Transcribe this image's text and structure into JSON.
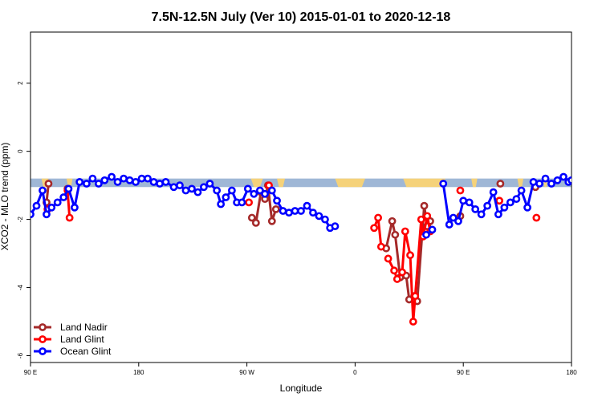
{
  "chart_data": {
    "type": "line",
    "title": "7.5N-12.5N July (Ver 10)   2015-01-01 to 2020-12-18",
    "xlabel": "Longitude",
    "ylabel": "XCO2 - MLO trend (ppm)",
    "xlim": [
      -90,
      180
    ],
    "ylim": [
      -6.2,
      3.5
    ],
    "xticks": [
      {
        "value": -90,
        "label": "90 E"
      },
      {
        "value": -36,
        "label": "180"
      },
      {
        "value": 18,
        "label": "90 W"
      },
      {
        "value": 72,
        "label": "0"
      },
      {
        "value": 126,
        "label": "90 E"
      },
      {
        "value": 180,
        "label": "180"
      }
    ],
    "yticks": [
      {
        "value": 2,
        "label": "2"
      },
      {
        "value": 0,
        "label": "0"
      },
      {
        "value": -2,
        "label": "-2"
      },
      {
        "value": -4,
        "label": "-4"
      },
      {
        "value": -6,
        "label": "-6"
      }
    ],
    "background_band": {
      "ymin": -1.05,
      "ymax": -0.8,
      "color": "#9fb7d6"
    },
    "land_regions": [
      {
        "x": [
          -84.5,
          -81
        ],
        "ymin": -1.05,
        "ymax": -0.8
      },
      {
        "x": [
          -72,
          -69
        ],
        "ymin": -1.05,
        "ymax": -0.8
      },
      {
        "x": [
          20,
          26
        ],
        "ymin": -1.05,
        "ymax": -0.8
      },
      {
        "x": [
          33,
          37
        ],
        "ymin": -1.05,
        "ymax": -0.8
      },
      {
        "x": [
          62,
          77
        ],
        "ymin": -1.05,
        "ymax": -0.8
      },
      {
        "x": [
          96,
          117
        ],
        "ymin": -1.05,
        "ymax": -0.8
      },
      {
        "x": [
          130,
          133
        ],
        "ymin": -1.05,
        "ymax": -0.8
      },
      {
        "x": [
          153,
          156
        ],
        "ymin": -1.05,
        "ymax": -0.8
      },
      {
        "x": [
          166,
          168
        ],
        "ymin": -1.05,
        "ymax": -0.8
      }
    ],
    "legend": {
      "position": "bottom-left",
      "entries": [
        "Land Nadir",
        "Land Glint",
        "Ocean Glint"
      ]
    },
    "series": [
      {
        "name": "Land Nadir",
        "color": "#a52a2a",
        "segments": [
          [
            [
              -82,
              -1.5
            ],
            [
              -81,
              -0.95
            ]
          ],
          [
            [
              -71.5,
              -1.1
            ]
          ],
          [
            [
              20.5,
              -1.95
            ],
            [
              22.5,
              -2.1
            ],
            [
              25,
              -1.2
            ],
            [
              27,
              -1.4
            ],
            [
              28.5,
              -1.0
            ],
            [
              30.5,
              -2.05
            ],
            [
              32.5,
              -1.7
            ]
          ],
          [
            [
              87.5,
              -2.85
            ],
            [
              90.5,
              -2.05
            ],
            [
              92,
              -2.45
            ],
            [
              94.5,
              -3.7
            ],
            [
              97.5,
              -3.65
            ],
            [
              99,
              -4.35
            ],
            [
              101.5,
              -4.25
            ],
            [
              103,
              -4.4
            ],
            [
              106.5,
              -1.6
            ],
            [
              108,
              -2.2
            ],
            [
              109.5,
              -2.05
            ]
          ],
          [
            [
              124.5,
              -1.9
            ]
          ],
          [
            [
              144.5,
              -0.95
            ]
          ],
          [
            [
              162,
              -1.05
            ]
          ]
        ]
      },
      {
        "name": "Land Glint",
        "color": "#ff0000",
        "segments": [
          [
            [
              -81.5,
              -1.7
            ]
          ],
          [
            [
              -71.5,
              -1.15
            ],
            [
              -70.5,
              -1.95
            ]
          ],
          [
            [
              19,
              -1.5
            ]
          ],
          [
            [
              29,
              -1.0
            ]
          ],
          [
            [
              81.5,
              -2.25
            ],
            [
              83.5,
              -1.95
            ],
            [
              85,
              -2.8
            ]
          ],
          [
            [
              88.5,
              -3.15
            ],
            [
              91.5,
              -3.5
            ],
            [
              93,
              -3.75
            ],
            [
              95.5,
              -3.55
            ],
            [
              97,
              -2.35
            ],
            [
              99.5,
              -3.05
            ],
            [
              101,
              -5.0
            ],
            [
              102,
              -4.25
            ],
            [
              105,
              -2.0
            ],
            [
              106,
              -2.5
            ],
            [
              108,
              -1.9
            ],
            [
              109.5,
              -2.35
            ]
          ],
          [
            [
              124.5,
              -1.15
            ]
          ],
          [
            [
              144,
              -1.45
            ]
          ],
          [
            [
              162.5,
              -1.95
            ]
          ]
        ]
      },
      {
        "name": "Ocean Glint",
        "color": "#0000ff",
        "segments": [
          [
            [
              -90,
              -1.85
            ],
            [
              -87,
              -1.6
            ],
            [
              -84,
              -1.15
            ],
            [
              -82,
              -1.85
            ],
            [
              -79.5,
              -1.65
            ],
            [
              -76.5,
              -1.5
            ],
            [
              -73.5,
              -1.35
            ],
            [
              -71,
              -1.1
            ],
            [
              -68,
              -1.65
            ],
            [
              -65.5,
              -0.9
            ],
            [
              -62,
              -0.95
            ],
            [
              -59,
              -0.8
            ],
            [
              -56,
              -0.95
            ],
            [
              -53,
              -0.85
            ],
            [
              -49.5,
              -0.75
            ],
            [
              -46.5,
              -0.9
            ],
            [
              -43.5,
              -0.8
            ],
            [
              -40.5,
              -0.85
            ],
            [
              -37.5,
              -0.9
            ],
            [
              -34.5,
              -0.8
            ],
            [
              -31.5,
              -0.8
            ],
            [
              -28.5,
              -0.9
            ],
            [
              -25.5,
              -0.95
            ],
            [
              -22.5,
              -0.9
            ],
            [
              -18.5,
              -1.05
            ],
            [
              -15.5,
              -1.0
            ],
            [
              -12.5,
              -1.15
            ],
            [
              -9.5,
              -1.1
            ],
            [
              -6.5,
              -1.2
            ],
            [
              -3.5,
              -1.05
            ],
            [
              -0.5,
              -0.95
            ],
            [
              3,
              -1.15
            ],
            [
              5,
              -1.55
            ],
            [
              7.5,
              -1.35
            ],
            [
              10.5,
              -1.15
            ],
            [
              13,
              -1.5
            ],
            [
              15.5,
              -1.5
            ],
            [
              18.5,
              -1.1
            ],
            [
              21.5,
              -1.25
            ],
            [
              24.5,
              -1.15
            ],
            [
              27,
              -1.25
            ],
            [
              30.5,
              -1.15
            ],
            [
              33,
              -1.45
            ],
            [
              36,
              -1.75
            ],
            [
              39,
              -1.8
            ],
            [
              42,
              -1.75
            ],
            [
              45,
              -1.75
            ],
            [
              48,
              -1.6
            ],
            [
              51,
              -1.8
            ],
            [
              54,
              -1.9
            ],
            [
              57,
              -2.0
            ],
            [
              59.5,
              -2.25
            ],
            [
              62,
              -2.2
            ]
          ],
          [
            [
              107.5,
              -2.45
            ],
            [
              110.5,
              -2.3
            ]
          ],
          [
            [
              116,
              -0.95
            ],
            [
              119,
              -2.15
            ],
            [
              121,
              -1.95
            ],
            [
              123.5,
              -2.05
            ],
            [
              126,
              -1.45
            ],
            [
              129,
              -1.5
            ],
            [
              132,
              -1.7
            ],
            [
              135,
              -1.85
            ],
            [
              138,
              -1.6
            ],
            [
              141,
              -1.2
            ],
            [
              143.5,
              -1.85
            ],
            [
              146.5,
              -1.65
            ],
            [
              149.5,
              -1.5
            ],
            [
              152.5,
              -1.4
            ],
            [
              155,
              -1.15
            ],
            [
              158,
              -1.65
            ],
            [
              161,
              -0.9
            ],
            [
              164,
              -0.95
            ],
            [
              167,
              -0.8
            ],
            [
              170,
              -0.95
            ],
            [
              173,
              -0.85
            ],
            [
              176,
              -0.75
            ],
            [
              178.5,
              -0.9
            ],
            [
              180,
              -0.85
            ]
          ]
        ]
      }
    ]
  }
}
